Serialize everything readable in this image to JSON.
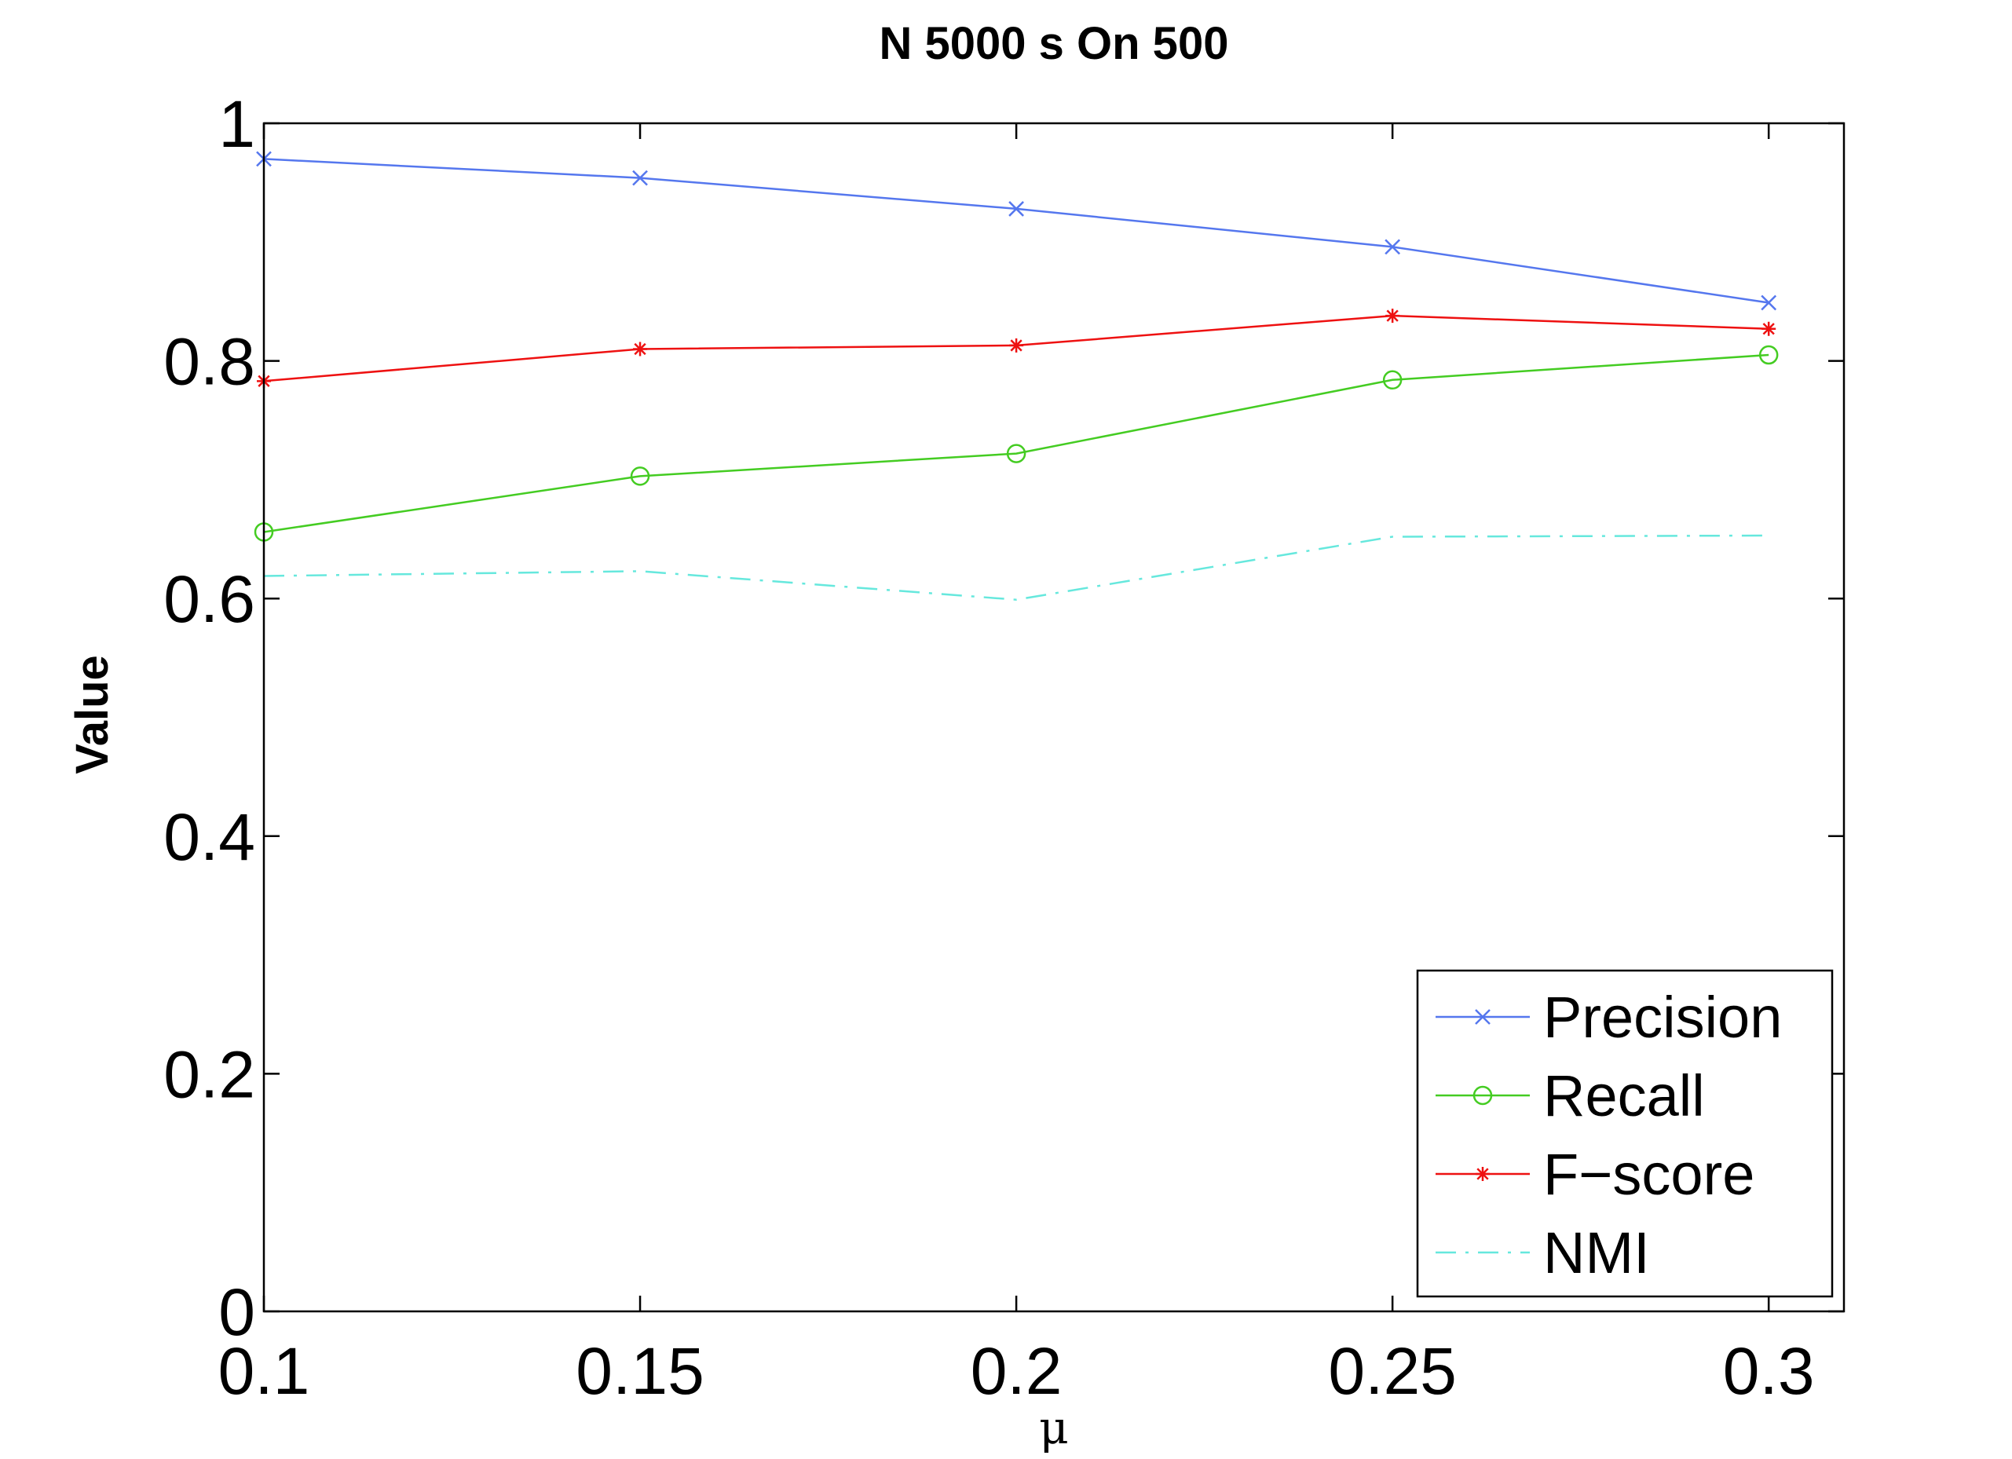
{
  "chart_data": {
    "type": "line",
    "title": "N 5000 s On 500",
    "xlabel": "μ",
    "ylabel": "Value",
    "x": [
      0.1,
      0.15,
      0.2,
      0.25,
      0.3
    ],
    "x_tick_labels": [
      "0.1",
      "0.15",
      "0.2",
      "0.25",
      "0.3"
    ],
    "y_tick_labels": [
      "0",
      "0.2",
      "0.4",
      "0.6",
      "0.8",
      "1"
    ],
    "xlim": [
      0.1,
      0.31
    ],
    "ylim": [
      0,
      1
    ],
    "grid": false,
    "legend_position": "bottom-right",
    "series": [
      {
        "name": "Precision",
        "values": [
          0.97,
          0.954,
          0.928,
          0.896,
          0.849
        ],
        "color": "#5577ee",
        "marker": "x",
        "line_style": "solid"
      },
      {
        "name": "Recall",
        "values": [
          0.656,
          0.703,
          0.722,
          0.784,
          0.805
        ],
        "color": "#44cc22",
        "marker": "circle",
        "line_style": "solid"
      },
      {
        "name": "F−score",
        "values": [
          0.783,
          0.81,
          0.813,
          0.838,
          0.827
        ],
        "color": "#ee1111",
        "marker": "star",
        "line_style": "solid"
      },
      {
        "name": "NMI",
        "values": [
          0.619,
          0.623,
          0.599,
          0.652,
          0.653
        ],
        "color": "#66e8dd",
        "marker": "none",
        "line_style": "dashdot"
      }
    ]
  }
}
